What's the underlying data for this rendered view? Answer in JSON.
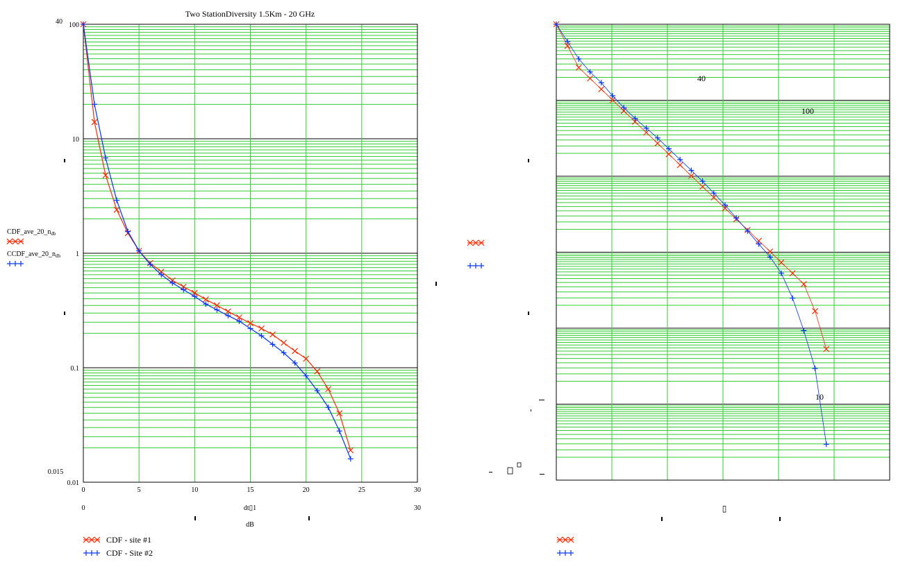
{
  "chart_data": [
    {
      "type": "line",
      "title": "Two StationDiversity 1.5Km -  20 GHz",
      "xlabel": "dB",
      "xlabel_upper": "dt▯1",
      "ylabel_series": [
        "CDF_ave_20_n",
        "CCDF_ave_20_n"
      ],
      "ylabel_subscript": "db",
      "y_scale": "log",
      "xlim": [
        0,
        30
      ],
      "ylim": [
        0.01,
        100
      ],
      "x_ticks": [
        "0",
        "5",
        "10",
        "15",
        "20",
        "25",
        "30"
      ],
      "y_ticks": [
        "0.01",
        "0.1",
        "1",
        "10",
        "100"
      ],
      "x_limit_labels": [
        "0",
        "30"
      ],
      "y_limit_labels": [
        "40",
        "0.015"
      ],
      "grid": true,
      "series": [
        {
          "name": "CDF - site #1",
          "color": "#ff2a00",
          "marker": "x",
          "x": [
            0,
            1,
            2,
            3,
            4,
            5,
            6,
            7,
            8,
            9,
            10,
            11,
            12,
            13,
            14,
            15,
            16,
            17,
            18,
            19,
            20,
            21,
            22,
            23,
            24
          ],
          "y": [
            100,
            14,
            4.8,
            2.4,
            1.5,
            1.05,
            0.82,
            0.69,
            0.58,
            0.51,
            0.45,
            0.395,
            0.35,
            0.31,
            0.275,
            0.245,
            0.22,
            0.195,
            0.165,
            0.14,
            0.12,
            0.093,
            0.065,
            0.04,
            0.019
          ]
        },
        {
          "name": "CDF - Site #2",
          "color": "#0033ff",
          "marker": "+",
          "x": [
            0,
            1,
            2,
            3,
            4,
            5,
            6,
            7,
            8,
            9,
            10,
            11,
            12,
            13,
            14,
            15,
            16,
            17,
            18,
            19,
            20,
            21,
            22,
            23,
            24
          ],
          "y": [
            100,
            20,
            6.8,
            2.9,
            1.55,
            1.05,
            0.8,
            0.65,
            0.55,
            0.48,
            0.42,
            0.36,
            0.32,
            0.285,
            0.255,
            0.22,
            0.19,
            0.16,
            0.135,
            0.11,
            0.085,
            0.063,
            0.045,
            0.028,
            0.016
          ]
        }
      ]
    },
    {
      "type": "line",
      "title": "",
      "inner_labels": [
        "40",
        "100",
        "10"
      ],
      "xlabel_upper": "▯",
      "grid": true,
      "series": [
        {
          "color": "#ff2a00",
          "marker": "x",
          "points": [
            [
              0,
              0
            ],
            [
              1,
              2
            ],
            [
              2,
              4
            ],
            [
              3,
              5
            ],
            [
              4,
              6
            ],
            [
              5,
              7
            ],
            [
              6,
              8
            ],
            [
              7,
              9
            ],
            [
              8,
              10
            ],
            [
              9,
              11
            ],
            [
              10,
              12
            ],
            [
              11,
              13
            ],
            [
              12,
              14
            ],
            [
              13,
              15
            ],
            [
              14,
              16
            ],
            [
              15,
              17
            ],
            [
              16,
              18
            ],
            [
              17,
              19
            ],
            [
              18,
              20
            ],
            [
              19,
              21
            ],
            [
              20,
              22
            ],
            [
              21,
              23
            ],
            [
              22,
              24
            ],
            [
              23,
              26.5
            ],
            [
              24,
              30
            ]
          ]
        },
        {
          "color": "#0033ff",
          "marker": "+",
          "points": [
            [
              0,
              0
            ],
            [
              1,
              1.6
            ],
            [
              2,
              3.2
            ],
            [
              3,
              4.4
            ],
            [
              4,
              5.4
            ],
            [
              5,
              6.6
            ],
            [
              6,
              7.7
            ],
            [
              7,
              8.7
            ],
            [
              8,
              9.6
            ],
            [
              9,
              10.5
            ],
            [
              10,
              11.5
            ],
            [
              11,
              12.5
            ],
            [
              12,
              13.5
            ],
            [
              13,
              14.5
            ],
            [
              14,
              15.6
            ],
            [
              15,
              16.7
            ],
            [
              16,
              17.9
            ],
            [
              17,
              19.1
            ],
            [
              18,
              20.3
            ],
            [
              19,
              21.5
            ],
            [
              20,
              23
            ],
            [
              21,
              25.3
            ],
            [
              22,
              28.3
            ],
            [
              23,
              31.8
            ],
            [
              24,
              38.8
            ]
          ]
        }
      ]
    }
  ]
}
